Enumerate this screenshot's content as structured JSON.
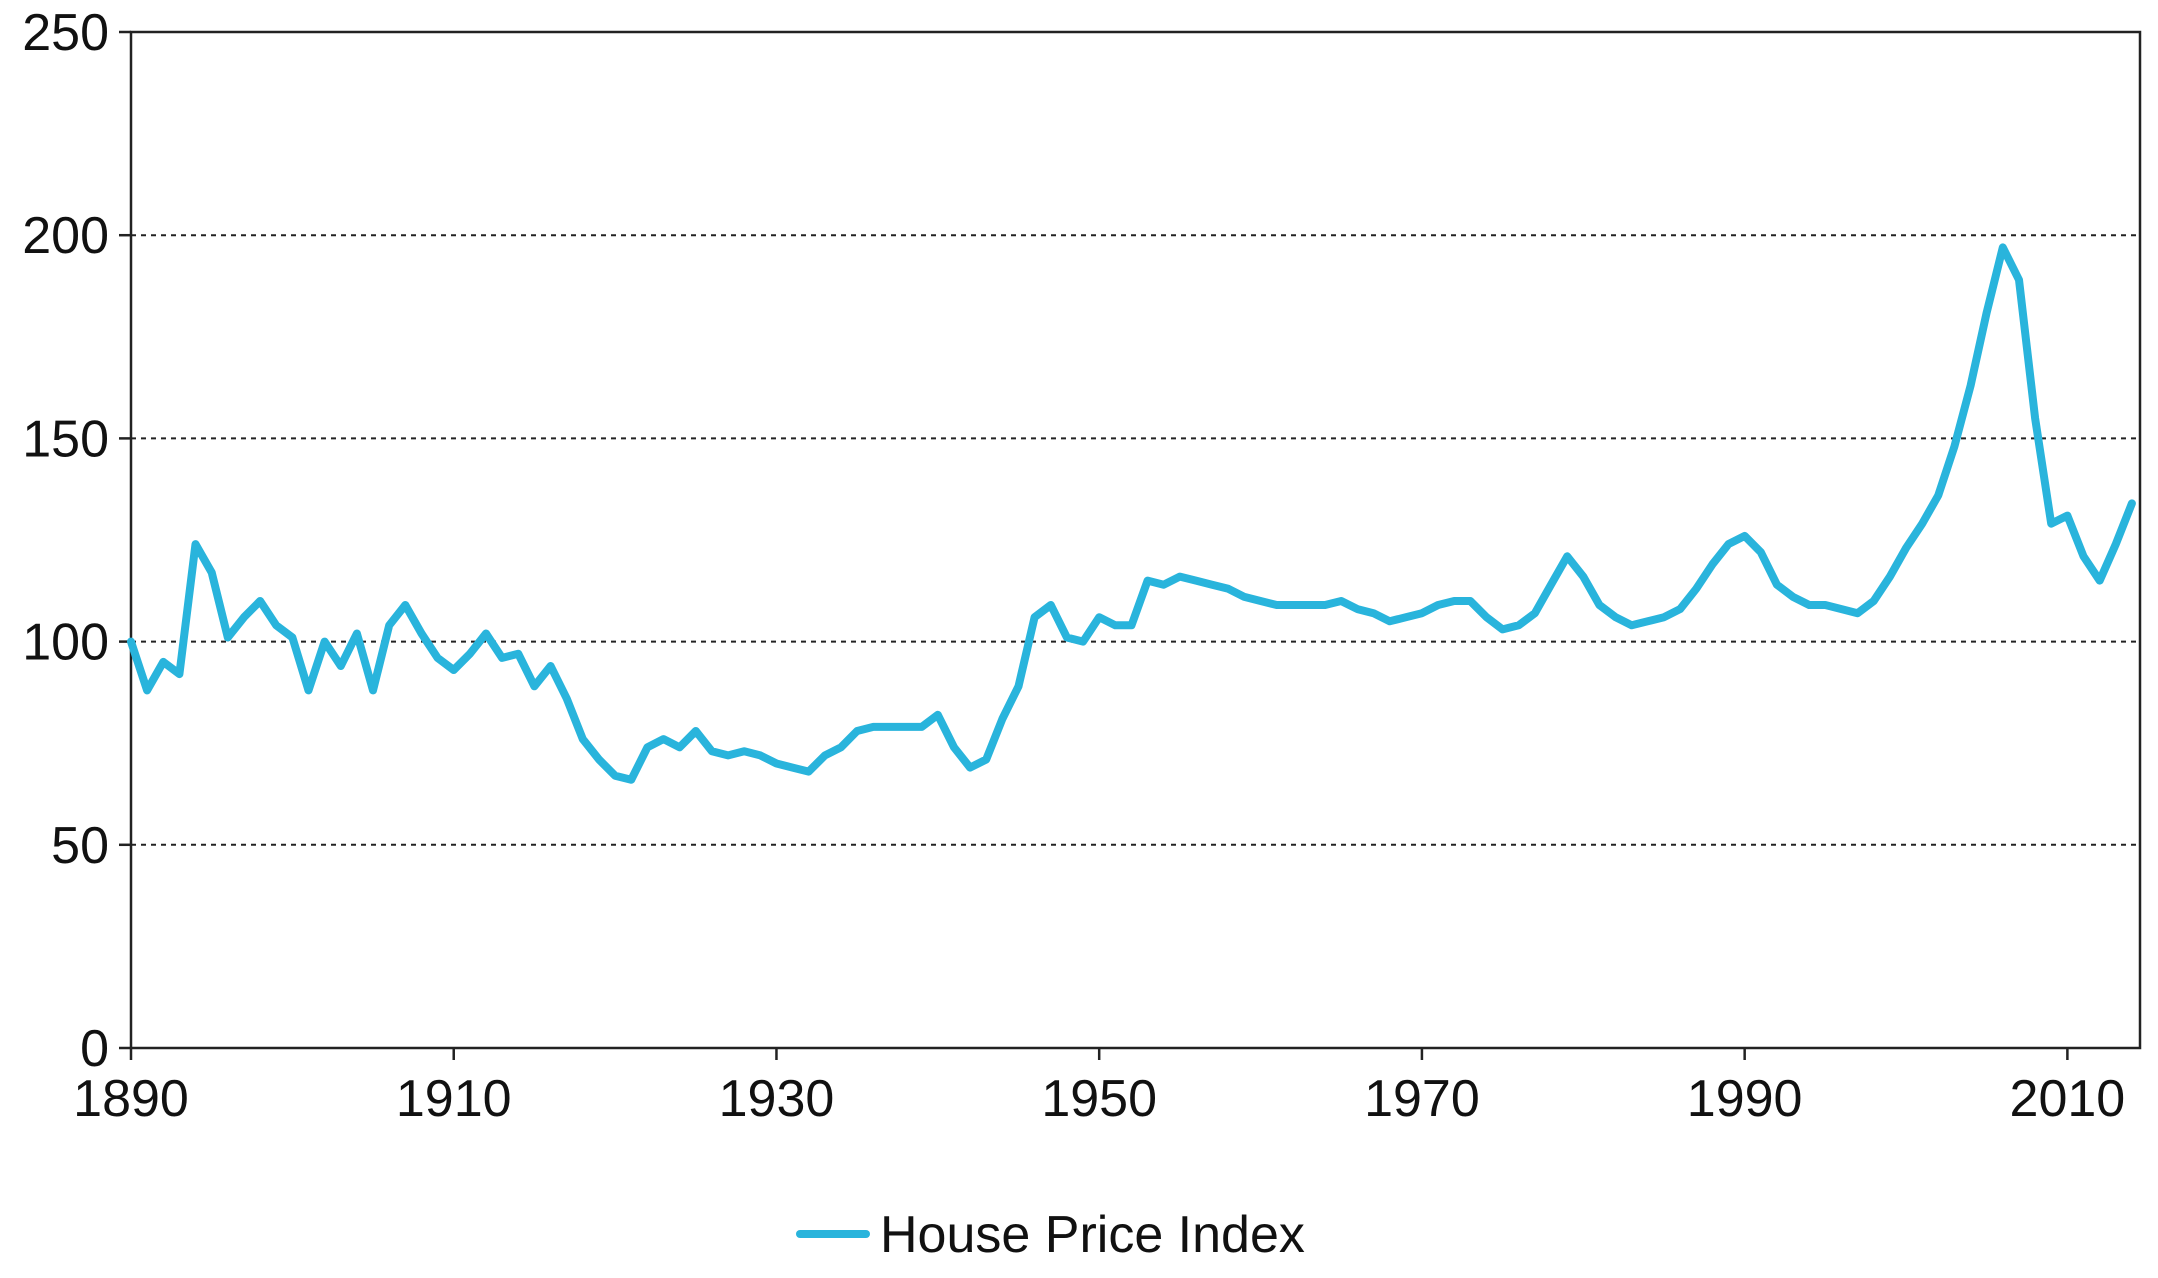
{
  "chart_data": {
    "type": "line",
    "title": "",
    "xlabel": "",
    "ylabel": "",
    "xlim": [
      1890,
      2014.5
    ],
    "ylim": [
      0,
      250
    ],
    "x_ticks": [
      "1890",
      "1910",
      "1930",
      "1950",
      "1970",
      "1990",
      "2010"
    ],
    "y_ticks": [
      "0",
      "50",
      "100",
      "150",
      "200",
      "250"
    ],
    "grid": "horizontal-dotted",
    "legend_position": "bottom-center",
    "series": [
      {
        "name": "House Price Index",
        "color": "#29b4dc",
        "points": [
          [
            1890,
            100
          ],
          [
            1891,
            88
          ],
          [
            1892,
            95
          ],
          [
            1893,
            92
          ],
          [
            1894,
            124
          ],
          [
            1895,
            117
          ],
          [
            1896,
            101
          ],
          [
            1897,
            106
          ],
          [
            1898,
            110
          ],
          [
            1899,
            104
          ],
          [
            1900,
            101
          ],
          [
            1901,
            88
          ],
          [
            1902,
            100
          ],
          [
            1903,
            94
          ],
          [
            1904,
            102
          ],
          [
            1905,
            88
          ],
          [
            1906,
            104
          ],
          [
            1907,
            109
          ],
          [
            1908,
            102
          ],
          [
            1909,
            96
          ],
          [
            1910,
            93
          ],
          [
            1911,
            97
          ],
          [
            1912,
            102
          ],
          [
            1913,
            96
          ],
          [
            1914,
            97
          ],
          [
            1915,
            89
          ],
          [
            1916,
            94
          ],
          [
            1917,
            86
          ],
          [
            1918,
            76
          ],
          [
            1919,
            71
          ],
          [
            1920,
            67
          ],
          [
            1921,
            66
          ],
          [
            1922,
            74
          ],
          [
            1923,
            76
          ],
          [
            1924,
            74
          ],
          [
            1925,
            78
          ],
          [
            1926,
            73
          ],
          [
            1927,
            72
          ],
          [
            1928,
            73
          ],
          [
            1929,
            72
          ],
          [
            1930,
            70
          ],
          [
            1931,
            69
          ],
          [
            1932,
            68
          ],
          [
            1933,
            72
          ],
          [
            1934,
            74
          ],
          [
            1935,
            78
          ],
          [
            1936,
            79
          ],
          [
            1937,
            79
          ],
          [
            1938,
            79
          ],
          [
            1939,
            79
          ],
          [
            1940,
            82
          ],
          [
            1941,
            74
          ],
          [
            1942,
            69
          ],
          [
            1943,
            71
          ],
          [
            1944,
            81
          ],
          [
            1945,
            89
          ],
          [
            1946,
            106
          ],
          [
            1947,
            109
          ],
          [
            1948,
            101
          ],
          [
            1949,
            100
          ],
          [
            1950,
            106
          ],
          [
            1951,
            104
          ],
          [
            1952,
            104
          ],
          [
            1953,
            115
          ],
          [
            1954,
            114
          ],
          [
            1955,
            116
          ],
          [
            1956,
            115
          ],
          [
            1957,
            114
          ],
          [
            1958,
            113
          ],
          [
            1959,
            111
          ],
          [
            1960,
            110
          ],
          [
            1961,
            109
          ],
          [
            1962,
            109
          ],
          [
            1963,
            109
          ],
          [
            1964,
            109
          ],
          [
            1965,
            110
          ],
          [
            1966,
            108
          ],
          [
            1967,
            107
          ],
          [
            1968,
            105
          ],
          [
            1969,
            106
          ],
          [
            1970,
            107
          ],
          [
            1971,
            109
          ],
          [
            1972,
            110
          ],
          [
            1973,
            110
          ],
          [
            1974,
            106
          ],
          [
            1975,
            103
          ],
          [
            1976,
            104
          ],
          [
            1977,
            107
          ],
          [
            1978,
            114
          ],
          [
            1979,
            121
          ],
          [
            1980,
            116
          ],
          [
            1981,
            109
          ],
          [
            1982,
            106
          ],
          [
            1983,
            104
          ],
          [
            1984,
            105
          ],
          [
            1985,
            106
          ],
          [
            1986,
            108
          ],
          [
            1987,
            113
          ],
          [
            1988,
            119
          ],
          [
            1989,
            124
          ],
          [
            1990,
            126
          ],
          [
            1991,
            122
          ],
          [
            1992,
            114
          ],
          [
            1993,
            111
          ],
          [
            1994,
            109
          ],
          [
            1995,
            109
          ],
          [
            1996,
            108
          ],
          [
            1997,
            107
          ],
          [
            1998,
            110
          ],
          [
            1999,
            116
          ],
          [
            2000,
            123
          ],
          [
            2001,
            129
          ],
          [
            2002,
            136
          ],
          [
            2003,
            148
          ],
          [
            2004,
            163
          ],
          [
            2005,
            181
          ],
          [
            2006,
            197
          ],
          [
            2007,
            189
          ],
          [
            2008,
            155
          ],
          [
            2009,
            129
          ],
          [
            2010,
            131
          ],
          [
            2011,
            121
          ],
          [
            2012,
            115
          ],
          [
            2013,
            124
          ],
          [
            2014,
            134
          ]
        ]
      }
    ]
  }
}
